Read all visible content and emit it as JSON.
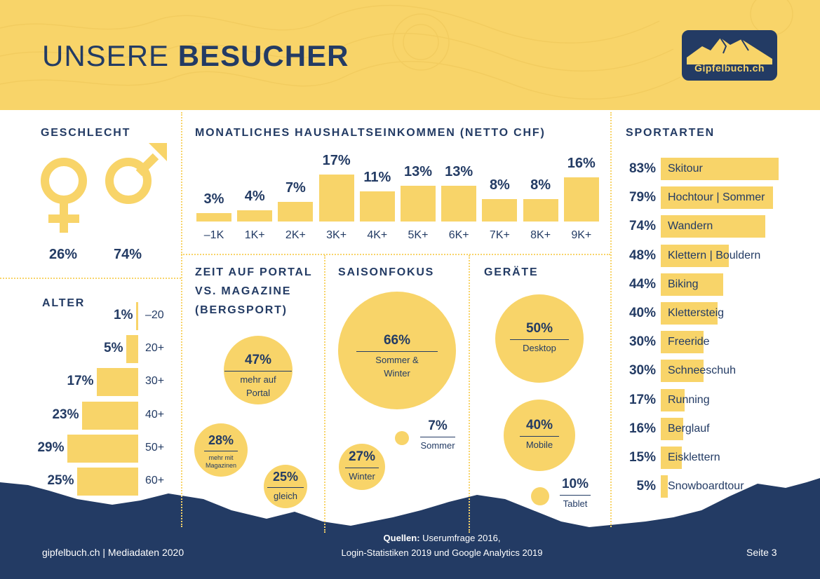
{
  "header": {
    "title_light": "UNSERE",
    "title_bold": "BESUCHER",
    "logo_text": "Gipfelbuch.ch"
  },
  "colors": {
    "accent": "#f8d469",
    "navy": "#233b64",
    "white": "#ffffff"
  },
  "gender": {
    "title": "GESCHLECHT",
    "female_symbol": "F",
    "male_symbol": "M",
    "female_pct": "26%",
    "male_pct": "74%"
  },
  "chart_data": [
    {
      "type": "bar",
      "title": "ALTER",
      "orientation": "horizontal",
      "categories": [
        "–20",
        "20+",
        "30+",
        "40+",
        "50+",
        "60+"
      ],
      "values": [
        1,
        5,
        17,
        23,
        29,
        25
      ],
      "labels": [
        "1%",
        "5%",
        "17%",
        "23%",
        "29%",
        "25%"
      ]
    },
    {
      "type": "bar",
      "title": "MONATLICHES HAUSHALTSEINKOMMEN (NETTO CHF)",
      "categories": [
        "–1K",
        "1K+",
        "2K+",
        "3K+",
        "4K+",
        "5K+",
        "6K+",
        "7K+",
        "8K+",
        "9K+"
      ],
      "values": [
        3,
        4,
        7,
        17,
        11,
        13,
        13,
        8,
        8,
        16
      ],
      "labels": [
        "3%",
        "4%",
        "7%",
        "17%",
        "11%",
        "13%",
        "13%",
        "8%",
        "8%",
        "16%"
      ]
    },
    {
      "type": "bar",
      "title": "SPORTARTEN",
      "orientation": "horizontal",
      "categories": [
        "Skitour",
        "Hochtour | Sommer",
        "Wandern",
        "Klettern | Bouldern",
        "Biking",
        "Klettersteig",
        "Freeride",
        "Schneeschuh",
        "Running",
        "Berglauf",
        "Eisklettern",
        "Snowboardtour"
      ],
      "values": [
        83,
        79,
        74,
        48,
        44,
        40,
        30,
        30,
        17,
        16,
        15,
        5
      ],
      "labels": [
        "83%",
        "79%",
        "74%",
        "48%",
        "44%",
        "40%",
        "30%",
        "30%",
        "17%",
        "16%",
        "15%",
        "5%"
      ]
    }
  ],
  "zeit": {
    "title_lines": [
      "ZEIT AUF PORTAL",
      "VS. MAGAZINE",
      "(BERGSPORT)"
    ],
    "items": [
      {
        "pct": "47%",
        "value": 47,
        "label_lines": [
          "mehr auf",
          "Portal"
        ]
      },
      {
        "pct": "28%",
        "value": 28,
        "label_lines": [
          "mehr mit",
          "Magazinen"
        ]
      },
      {
        "pct": "25%",
        "value": 25,
        "label_lines": [
          "gleich"
        ]
      }
    ]
  },
  "saison": {
    "title": "SAISONFOKUS",
    "items": [
      {
        "pct": "66%",
        "value": 66,
        "label_lines": [
          "Sommer &",
          "Winter"
        ]
      },
      {
        "pct": "7%",
        "value": 7,
        "label_lines": [
          "Sommer"
        ]
      },
      {
        "pct": "27%",
        "value": 27,
        "label_lines": [
          "Winter"
        ]
      }
    ]
  },
  "geraete": {
    "title": "GERÄTE",
    "items": [
      {
        "pct": "50%",
        "value": 50,
        "label_lines": [
          "Desktop"
        ]
      },
      {
        "pct": "40%",
        "value": 40,
        "label_lines": [
          "Mobile"
        ]
      },
      {
        "pct": "10%",
        "value": 10,
        "label_lines": [
          "Tablet"
        ]
      }
    ]
  },
  "footer": {
    "left": "gipfelbuch.ch | Mediadaten 2020",
    "sources_label": "Quellen:",
    "sources_line1": "Userumfrage 2016,",
    "sources_line2": "Login-Statistiken 2019 und Google Analytics 2019",
    "page": "Seite 3"
  }
}
